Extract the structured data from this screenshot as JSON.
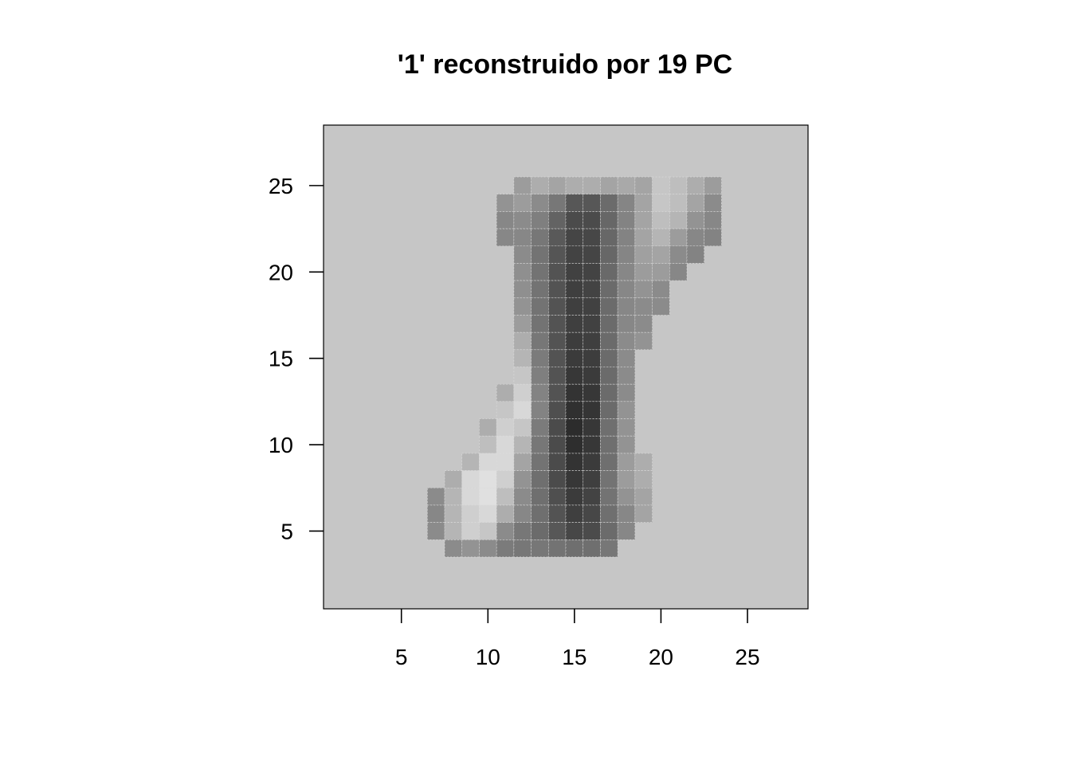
{
  "chart_data": {
    "type": "heatmap",
    "title": "'1' reconstruido por 19 PC",
    "xlabel": "",
    "ylabel": "",
    "xlim": [
      0.5,
      28.5
    ],
    "ylim": [
      0.5,
      28.5
    ],
    "x_ticks": [
      5,
      10,
      15,
      20,
      25
    ],
    "y_ticks": [
      5,
      10,
      15,
      20,
      25
    ],
    "x_tick_labels": [
      "5",
      "10",
      "15",
      "20",
      "25"
    ],
    "y_tick_labels": [
      "5",
      "10",
      "15",
      "20",
      "25"
    ],
    "background_color": "#c6c6c6",
    "colormap": "grayscale",
    "cells": [
      {
        "x": 12,
        "y": 25,
        "v": 0.26
      },
      {
        "x": 13,
        "y": 25,
        "v": 0.22
      },
      {
        "x": 14,
        "y": 25,
        "v": 0.24
      },
      {
        "x": 15,
        "y": 25,
        "v": 0.22
      },
      {
        "x": 16,
        "y": 25,
        "v": 0.22
      },
      {
        "x": 17,
        "y": 25,
        "v": 0.24
      },
      {
        "x": 18,
        "y": 25,
        "v": 0.23
      },
      {
        "x": 19,
        "y": 25,
        "v": 0.24
      },
      {
        "x": 20,
        "y": 25,
        "v": 0.16
      },
      {
        "x": 21,
        "y": 25,
        "v": 0.18
      },
      {
        "x": 22,
        "y": 25,
        "v": 0.22
      },
      {
        "x": 23,
        "y": 25,
        "v": 0.26
      },
      {
        "x": 11,
        "y": 24,
        "v": 0.28
      },
      {
        "x": 12,
        "y": 24,
        "v": 0.26
      },
      {
        "x": 13,
        "y": 24,
        "v": 0.3
      },
      {
        "x": 14,
        "y": 24,
        "v": 0.4
      },
      {
        "x": 15,
        "y": 24,
        "v": 0.56
      },
      {
        "x": 16,
        "y": 24,
        "v": 0.56
      },
      {
        "x": 17,
        "y": 24,
        "v": 0.46
      },
      {
        "x": 18,
        "y": 24,
        "v": 0.33
      },
      {
        "x": 19,
        "y": 24,
        "v": 0.24
      },
      {
        "x": 20,
        "y": 24,
        "v": 0.16
      },
      {
        "x": 21,
        "y": 24,
        "v": 0.18
      },
      {
        "x": 22,
        "y": 24,
        "v": 0.24
      },
      {
        "x": 23,
        "y": 24,
        "v": 0.3
      },
      {
        "x": 11,
        "y": 23,
        "v": 0.32
      },
      {
        "x": 12,
        "y": 23,
        "v": 0.3
      },
      {
        "x": 13,
        "y": 23,
        "v": 0.36
      },
      {
        "x": 14,
        "y": 23,
        "v": 0.5
      },
      {
        "x": 15,
        "y": 23,
        "v": 0.62
      },
      {
        "x": 16,
        "y": 23,
        "v": 0.62
      },
      {
        "x": 17,
        "y": 23,
        "v": 0.48
      },
      {
        "x": 18,
        "y": 23,
        "v": 0.34
      },
      {
        "x": 19,
        "y": 23,
        "v": 0.24
      },
      {
        "x": 20,
        "y": 23,
        "v": 0.18
      },
      {
        "x": 21,
        "y": 23,
        "v": 0.2
      },
      {
        "x": 22,
        "y": 23,
        "v": 0.28
      },
      {
        "x": 23,
        "y": 23,
        "v": 0.32
      },
      {
        "x": 11,
        "y": 22,
        "v": 0.32
      },
      {
        "x": 12,
        "y": 22,
        "v": 0.32
      },
      {
        "x": 13,
        "y": 22,
        "v": 0.4
      },
      {
        "x": 14,
        "y": 22,
        "v": 0.55
      },
      {
        "x": 15,
        "y": 22,
        "v": 0.65
      },
      {
        "x": 16,
        "y": 22,
        "v": 0.64
      },
      {
        "x": 17,
        "y": 22,
        "v": 0.48
      },
      {
        "x": 18,
        "y": 22,
        "v": 0.34
      },
      {
        "x": 19,
        "y": 22,
        "v": 0.24
      },
      {
        "x": 20,
        "y": 22,
        "v": 0.2
      },
      {
        "x": 21,
        "y": 22,
        "v": 0.26
      },
      {
        "x": 22,
        "y": 22,
        "v": 0.32
      },
      {
        "x": 23,
        "y": 22,
        "v": 0.34
      },
      {
        "x": 12,
        "y": 21,
        "v": 0.3
      },
      {
        "x": 13,
        "y": 21,
        "v": 0.42
      },
      {
        "x": 14,
        "y": 21,
        "v": 0.57
      },
      {
        "x": 15,
        "y": 21,
        "v": 0.66
      },
      {
        "x": 16,
        "y": 21,
        "v": 0.65
      },
      {
        "x": 17,
        "y": 21,
        "v": 0.48
      },
      {
        "x": 18,
        "y": 21,
        "v": 0.33
      },
      {
        "x": 19,
        "y": 21,
        "v": 0.25
      },
      {
        "x": 20,
        "y": 21,
        "v": 0.24
      },
      {
        "x": 21,
        "y": 21,
        "v": 0.3
      },
      {
        "x": 22,
        "y": 21,
        "v": 0.34
      },
      {
        "x": 12,
        "y": 20,
        "v": 0.29
      },
      {
        "x": 13,
        "y": 20,
        "v": 0.42
      },
      {
        "x": 14,
        "y": 20,
        "v": 0.58
      },
      {
        "x": 15,
        "y": 20,
        "v": 0.67
      },
      {
        "x": 16,
        "y": 20,
        "v": 0.66
      },
      {
        "x": 17,
        "y": 20,
        "v": 0.47
      },
      {
        "x": 18,
        "y": 20,
        "v": 0.32
      },
      {
        "x": 19,
        "y": 20,
        "v": 0.26
      },
      {
        "x": 20,
        "y": 20,
        "v": 0.26
      },
      {
        "x": 21,
        "y": 20,
        "v": 0.32
      },
      {
        "x": 12,
        "y": 19,
        "v": 0.29
      },
      {
        "x": 13,
        "y": 19,
        "v": 0.42
      },
      {
        "x": 14,
        "y": 19,
        "v": 0.58
      },
      {
        "x": 15,
        "y": 19,
        "v": 0.68
      },
      {
        "x": 16,
        "y": 19,
        "v": 0.66
      },
      {
        "x": 17,
        "y": 19,
        "v": 0.46
      },
      {
        "x": 18,
        "y": 19,
        "v": 0.32
      },
      {
        "x": 19,
        "y": 19,
        "v": 0.28
      },
      {
        "x": 20,
        "y": 19,
        "v": 0.3
      },
      {
        "x": 12,
        "y": 18,
        "v": 0.28
      },
      {
        "x": 13,
        "y": 18,
        "v": 0.42
      },
      {
        "x": 14,
        "y": 18,
        "v": 0.58
      },
      {
        "x": 15,
        "y": 18,
        "v": 0.68
      },
      {
        "x": 16,
        "y": 18,
        "v": 0.67
      },
      {
        "x": 17,
        "y": 18,
        "v": 0.46
      },
      {
        "x": 18,
        "y": 18,
        "v": 0.32
      },
      {
        "x": 19,
        "y": 18,
        "v": 0.3
      },
      {
        "x": 20,
        "y": 18,
        "v": 0.3
      },
      {
        "x": 12,
        "y": 17,
        "v": 0.26
      },
      {
        "x": 13,
        "y": 17,
        "v": 0.42
      },
      {
        "x": 14,
        "y": 17,
        "v": 0.58
      },
      {
        "x": 15,
        "y": 17,
        "v": 0.68
      },
      {
        "x": 16,
        "y": 17,
        "v": 0.67
      },
      {
        "x": 17,
        "y": 17,
        "v": 0.46
      },
      {
        "x": 18,
        "y": 17,
        "v": 0.32
      },
      {
        "x": 19,
        "y": 17,
        "v": 0.3
      },
      {
        "x": 12,
        "y": 16,
        "v": 0.22
      },
      {
        "x": 13,
        "y": 16,
        "v": 0.4
      },
      {
        "x": 14,
        "y": 16,
        "v": 0.58
      },
      {
        "x": 15,
        "y": 16,
        "v": 0.69
      },
      {
        "x": 16,
        "y": 16,
        "v": 0.68
      },
      {
        "x": 17,
        "y": 16,
        "v": 0.46
      },
      {
        "x": 18,
        "y": 16,
        "v": 0.3
      },
      {
        "x": 19,
        "y": 16,
        "v": 0.28
      },
      {
        "x": 12,
        "y": 15,
        "v": 0.2
      },
      {
        "x": 13,
        "y": 15,
        "v": 0.38
      },
      {
        "x": 14,
        "y": 15,
        "v": 0.58
      },
      {
        "x": 15,
        "y": 15,
        "v": 0.7
      },
      {
        "x": 16,
        "y": 15,
        "v": 0.69
      },
      {
        "x": 17,
        "y": 15,
        "v": 0.46
      },
      {
        "x": 18,
        "y": 15,
        "v": 0.3
      },
      {
        "x": 12,
        "y": 14,
        "v": 0.16
      },
      {
        "x": 13,
        "y": 14,
        "v": 0.36
      },
      {
        "x": 14,
        "y": 14,
        "v": 0.58
      },
      {
        "x": 15,
        "y": 14,
        "v": 0.72
      },
      {
        "x": 16,
        "y": 14,
        "v": 0.7
      },
      {
        "x": 17,
        "y": 14,
        "v": 0.46
      },
      {
        "x": 18,
        "y": 14,
        "v": 0.3
      },
      {
        "x": 11,
        "y": 13,
        "v": 0.22
      },
      {
        "x": 12,
        "y": 13,
        "v": 0.14
      },
      {
        "x": 13,
        "y": 13,
        "v": 0.34
      },
      {
        "x": 14,
        "y": 13,
        "v": 0.58
      },
      {
        "x": 15,
        "y": 13,
        "v": 0.74
      },
      {
        "x": 16,
        "y": 13,
        "v": 0.72
      },
      {
        "x": 17,
        "y": 13,
        "v": 0.46
      },
      {
        "x": 18,
        "y": 13,
        "v": 0.3
      },
      {
        "x": 11,
        "y": 12,
        "v": 0.16
      },
      {
        "x": 12,
        "y": 12,
        "v": 0.12
      },
      {
        "x": 13,
        "y": 12,
        "v": 0.34
      },
      {
        "x": 14,
        "y": 12,
        "v": 0.6
      },
      {
        "x": 15,
        "y": 12,
        "v": 0.76
      },
      {
        "x": 16,
        "y": 12,
        "v": 0.73
      },
      {
        "x": 17,
        "y": 12,
        "v": 0.46
      },
      {
        "x": 18,
        "y": 12,
        "v": 0.28
      },
      {
        "x": 10,
        "y": 11,
        "v": 0.22
      },
      {
        "x": 11,
        "y": 11,
        "v": 0.14
      },
      {
        "x": 12,
        "y": 11,
        "v": 0.16
      },
      {
        "x": 13,
        "y": 11,
        "v": 0.38
      },
      {
        "x": 14,
        "y": 11,
        "v": 0.62
      },
      {
        "x": 15,
        "y": 11,
        "v": 0.78
      },
      {
        "x": 16,
        "y": 11,
        "v": 0.72
      },
      {
        "x": 17,
        "y": 11,
        "v": 0.44
      },
      {
        "x": 18,
        "y": 11,
        "v": 0.28
      },
      {
        "x": 10,
        "y": 10,
        "v": 0.18
      },
      {
        "x": 11,
        "y": 10,
        "v": 0.12
      },
      {
        "x": 12,
        "y": 10,
        "v": 0.2
      },
      {
        "x": 13,
        "y": 10,
        "v": 0.4
      },
      {
        "x": 14,
        "y": 10,
        "v": 0.62
      },
      {
        "x": 15,
        "y": 10,
        "v": 0.77
      },
      {
        "x": 16,
        "y": 10,
        "v": 0.72
      },
      {
        "x": 17,
        "y": 10,
        "v": 0.44
      },
      {
        "x": 18,
        "y": 10,
        "v": 0.28
      },
      {
        "x": 9,
        "y": 9,
        "v": 0.2
      },
      {
        "x": 10,
        "y": 9,
        "v": 0.12
      },
      {
        "x": 11,
        "y": 9,
        "v": 0.12
      },
      {
        "x": 12,
        "y": 9,
        "v": 0.24
      },
      {
        "x": 13,
        "y": 9,
        "v": 0.42
      },
      {
        "x": 14,
        "y": 9,
        "v": 0.62
      },
      {
        "x": 15,
        "y": 9,
        "v": 0.74
      },
      {
        "x": 16,
        "y": 9,
        "v": 0.7
      },
      {
        "x": 17,
        "y": 9,
        "v": 0.44
      },
      {
        "x": 18,
        "y": 9,
        "v": 0.26
      },
      {
        "x": 19,
        "y": 9,
        "v": 0.22
      },
      {
        "x": 8,
        "y": 8,
        "v": 0.22
      },
      {
        "x": 9,
        "y": 8,
        "v": 0.12
      },
      {
        "x": 10,
        "y": 8,
        "v": 0.1
      },
      {
        "x": 11,
        "y": 8,
        "v": 0.14
      },
      {
        "x": 12,
        "y": 8,
        "v": 0.28
      },
      {
        "x": 13,
        "y": 8,
        "v": 0.44
      },
      {
        "x": 14,
        "y": 8,
        "v": 0.62
      },
      {
        "x": 15,
        "y": 8,
        "v": 0.72
      },
      {
        "x": 16,
        "y": 8,
        "v": 0.68
      },
      {
        "x": 17,
        "y": 8,
        "v": 0.42
      },
      {
        "x": 18,
        "y": 8,
        "v": 0.26
      },
      {
        "x": 19,
        "y": 8,
        "v": 0.22
      },
      {
        "x": 7,
        "y": 7,
        "v": 0.3
      },
      {
        "x": 8,
        "y": 7,
        "v": 0.2
      },
      {
        "x": 9,
        "y": 7,
        "v": 0.12
      },
      {
        "x": 10,
        "y": 7,
        "v": 0.1
      },
      {
        "x": 11,
        "y": 7,
        "v": 0.18
      },
      {
        "x": 12,
        "y": 7,
        "v": 0.3
      },
      {
        "x": 13,
        "y": 7,
        "v": 0.44
      },
      {
        "x": 14,
        "y": 7,
        "v": 0.6
      },
      {
        "x": 15,
        "y": 7,
        "v": 0.7
      },
      {
        "x": 16,
        "y": 7,
        "v": 0.66
      },
      {
        "x": 17,
        "y": 7,
        "v": 0.42
      },
      {
        "x": 18,
        "y": 7,
        "v": 0.28
      },
      {
        "x": 19,
        "y": 7,
        "v": 0.24
      },
      {
        "x": 7,
        "y": 6,
        "v": 0.32
      },
      {
        "x": 8,
        "y": 6,
        "v": 0.2
      },
      {
        "x": 9,
        "y": 6,
        "v": 0.14
      },
      {
        "x": 10,
        "y": 6,
        "v": 0.12
      },
      {
        "x": 11,
        "y": 6,
        "v": 0.22
      },
      {
        "x": 12,
        "y": 6,
        "v": 0.32
      },
      {
        "x": 13,
        "y": 6,
        "v": 0.44
      },
      {
        "x": 14,
        "y": 6,
        "v": 0.58
      },
      {
        "x": 15,
        "y": 6,
        "v": 0.68
      },
      {
        "x": 16,
        "y": 6,
        "v": 0.64
      },
      {
        "x": 17,
        "y": 6,
        "v": 0.44
      },
      {
        "x": 18,
        "y": 6,
        "v": 0.32
      },
      {
        "x": 19,
        "y": 6,
        "v": 0.24
      },
      {
        "x": 7,
        "y": 5,
        "v": 0.3
      },
      {
        "x": 8,
        "y": 5,
        "v": 0.2
      },
      {
        "x": 9,
        "y": 5,
        "v": 0.14
      },
      {
        "x": 10,
        "y": 5,
        "v": 0.16
      },
      {
        "x": 11,
        "y": 5,
        "v": 0.3
      },
      {
        "x": 12,
        "y": 5,
        "v": 0.4
      },
      {
        "x": 13,
        "y": 5,
        "v": 0.46
      },
      {
        "x": 14,
        "y": 5,
        "v": 0.56
      },
      {
        "x": 15,
        "y": 5,
        "v": 0.64
      },
      {
        "x": 16,
        "y": 5,
        "v": 0.62
      },
      {
        "x": 17,
        "y": 5,
        "v": 0.46
      },
      {
        "x": 18,
        "y": 5,
        "v": 0.32
      },
      {
        "x": 8,
        "y": 4,
        "v": 0.3
      },
      {
        "x": 9,
        "y": 4,
        "v": 0.28
      },
      {
        "x": 10,
        "y": 4,
        "v": 0.3
      },
      {
        "x": 11,
        "y": 4,
        "v": 0.38
      },
      {
        "x": 12,
        "y": 4,
        "v": 0.4
      },
      {
        "x": 13,
        "y": 4,
        "v": 0.4
      },
      {
        "x": 14,
        "y": 4,
        "v": 0.42
      },
      {
        "x": 15,
        "y": 4,
        "v": 0.44
      },
      {
        "x": 16,
        "y": 4,
        "v": 0.44
      },
      {
        "x": 17,
        "y": 4,
        "v": 0.4
      }
    ]
  }
}
